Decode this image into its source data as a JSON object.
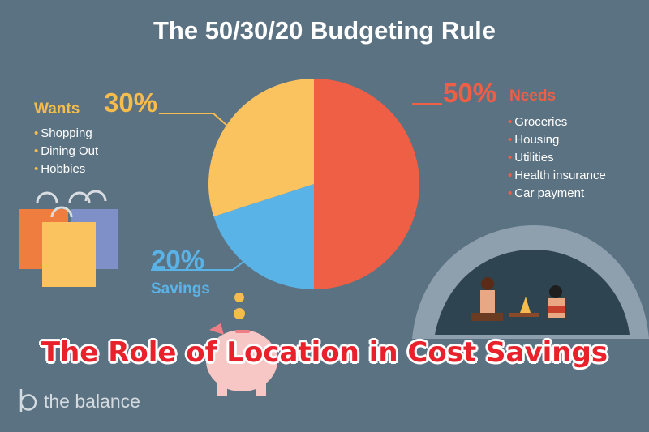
{
  "title": "The 50/30/20 Budgeting Rule",
  "chart_data": {
    "type": "pie",
    "title": "The 50/30/20 Budgeting Rule",
    "slices": [
      {
        "name": "Needs",
        "value": 50,
        "label": "50%",
        "color": "#ee5f45"
      },
      {
        "name": "Savings",
        "value": 20,
        "label": "20%",
        "color": "#5ab3e6"
      },
      {
        "name": "Wants",
        "value": 30,
        "label": "30%",
        "color": "#fbc35f"
      }
    ]
  },
  "needs": {
    "percent": "50%",
    "label": "Needs",
    "items": [
      "Groceries",
      "Housing",
      "Utilities",
      "Health insurance",
      "Car payment"
    ],
    "color": "#ee5f45"
  },
  "wants": {
    "percent": "30%",
    "label": "Wants",
    "items": [
      "Shopping",
      "Dining Out",
      "Hobbies"
    ],
    "color": "#f6bc4c"
  },
  "savings": {
    "percent": "20%",
    "label": "Savings",
    "color": "#5ab3e6"
  },
  "overlay_title": "The Role of Location in Cost Savings",
  "brand": "the balance"
}
